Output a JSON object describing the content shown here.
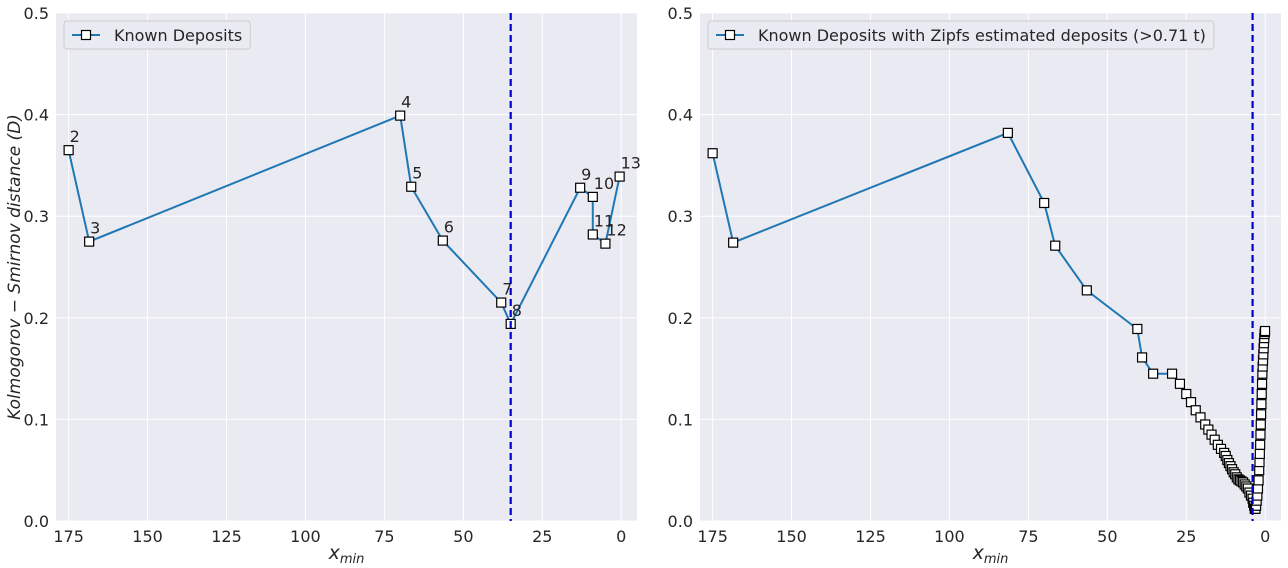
{
  "chart_data": [
    {
      "type": "line",
      "title": "",
      "xlabel": "x_min",
      "ylabel": "Kolmogorov − Smirnov distance (D)",
      "xlim": [
        179,
        -5
      ],
      "ylim": [
        0,
        0.5
      ],
      "x_inverted": true,
      "grid": true,
      "legend_position": "top-left",
      "xticks": [
        "175",
        "150",
        "125",
        "100",
        "75",
        "50",
        "25",
        "0"
      ],
      "yticks": [
        "0.0",
        "0.1",
        "0.2",
        "0.3",
        "0.4",
        "0.5"
      ],
      "series": [
        {
          "name": "Known Deposits",
          "marker": "square",
          "x": [
            175,
            168.5,
            70,
            66.5,
            56.5,
            38,
            35,
            13,
            9,
            9,
            5,
            0.5
          ],
          "y": [
            0.365,
            0.275,
            0.399,
            0.329,
            0.276,
            0.215,
            0.194,
            0.328,
            0.319,
            0.282,
            0.273,
            0.339
          ],
          "point_labels": [
            "2",
            "3",
            "4",
            "5",
            "6",
            "7",
            "8",
            "9",
            "10",
            "11",
            "12",
            "13"
          ]
        }
      ],
      "vline_x": 35,
      "vline_style": "dashed",
      "colors": {
        "line": "#1f77b4",
        "vline": "#0000cc",
        "background": "#eaeaf2"
      }
    },
    {
      "type": "line",
      "title": "",
      "xlabel": "x_min",
      "ylabel": "",
      "xlim": [
        179,
        -5
      ],
      "ylim": [
        0,
        0.5
      ],
      "x_inverted": true,
      "grid": true,
      "legend_position": "top-left",
      "xticks": [
        "175",
        "150",
        "125",
        "100",
        "75",
        "50",
        "25",
        "0"
      ],
      "yticks": [
        "0.0",
        "0.1",
        "0.2",
        "0.3",
        "0.4",
        "0.5"
      ],
      "series": [
        {
          "name": "Known Deposits with Zipfs estimated deposits (>0.71 t)",
          "marker": "square",
          "x": [
            175,
            168.5,
            81.5,
            70,
            66.5,
            56.5,
            40.5,
            39,
            35.5,
            29.5,
            27,
            25,
            23.5,
            22,
            20.5,
            19,
            18,
            17,
            16,
            15,
            14,
            13,
            12.5,
            12,
            11.5,
            11,
            10.5,
            10,
            9.5,
            9,
            8.5,
            8,
            7.5,
            7,
            6.5,
            6,
            5.5,
            5,
            4.5,
            4,
            3.8,
            3.5,
            3.3,
            3.1,
            2.9,
            2.7,
            2.5,
            2.3,
            2.1,
            1.9,
            1.8,
            1.7,
            1.6,
            1.5,
            1.4,
            1.3,
            1.2,
            1.1,
            1.0,
            0.9,
            0.8,
            0.7,
            0.6,
            0.5,
            0.4,
            0.3,
            0.2,
            0.1,
            0.05
          ],
          "y": [
            0.362,
            0.274,
            0.382,
            0.313,
            0.271,
            0.227,
            0.189,
            0.161,
            0.145,
            0.145,
            0.135,
            0.125,
            0.117,
            0.109,
            0.102,
            0.095,
            0.09,
            0.085,
            0.08,
            0.075,
            0.071,
            0.067,
            0.064,
            0.06,
            0.057,
            0.054,
            0.051,
            0.048,
            0.046,
            0.043,
            0.041,
            0.04,
            0.039,
            0.038,
            0.036,
            0.034,
            0.032,
            0.028,
            0.025,
            0.022,
            0.018,
            0.015,
            0.012,
            0.012,
            0.015,
            0.02,
            0.025,
            0.032,
            0.04,
            0.05,
            0.058,
            0.066,
            0.075,
            0.085,
            0.095,
            0.105,
            0.115,
            0.125,
            0.135,
            0.145,
            0.152,
            0.158,
            0.164,
            0.17,
            0.175,
            0.18,
            0.184,
            0.186,
            0.187
          ]
        }
      ],
      "vline_x": 4,
      "vline_style": "dashed",
      "colors": {
        "line": "#1f77b4",
        "vline": "#0000cc",
        "background": "#eaeaf2"
      }
    }
  ]
}
